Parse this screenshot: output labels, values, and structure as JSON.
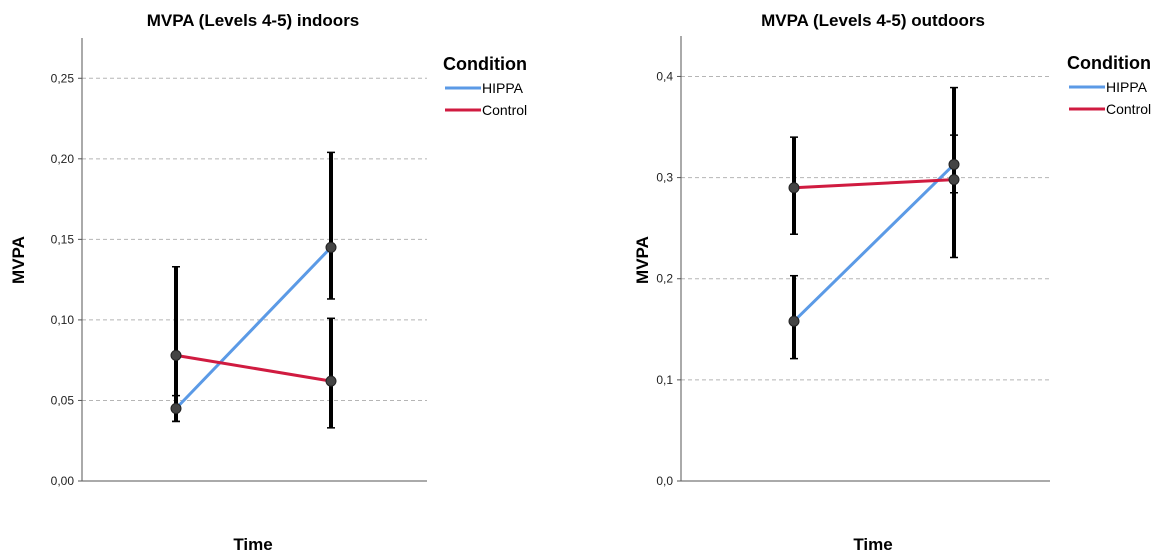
{
  "chart_data": [
    {
      "type": "line",
      "title": "MVPA (Levels 4-5) indoors",
      "xlabel": "Time",
      "ylabel": "MVPA",
      "ylim": [
        0,
        0.275
      ],
      "yticks": [
        "0,00",
        "0,05",
        "0,10",
        "0,15",
        "0,20",
        "0,25"
      ],
      "ytick_values": [
        0,
        0.05,
        0.1,
        0.15,
        0.2,
        0.25
      ],
      "grid": true,
      "legend": {
        "title": "Condition",
        "placement": "right"
      },
      "x": [
        1,
        2
      ],
      "series": [
        {
          "name": "HIPPA",
          "color": "#5b9ae6",
          "values": [
            0.045,
            0.145
          ],
          "ci_low": [
            0.037,
            0.113
          ],
          "ci_high": [
            0.053,
            0.204
          ]
        },
        {
          "name": "Control",
          "color": "#d01b40",
          "values": [
            0.078,
            0.062
          ],
          "ci_low": [
            0.037,
            0.033
          ],
          "ci_high": [
            0.133,
            0.101
          ]
        }
      ]
    },
    {
      "type": "line",
      "title": "MVPA (Levels 4-5) outdoors",
      "xlabel": "Time",
      "ylabel": "MVPA",
      "ylim": [
        0,
        0.44
      ],
      "yticks": [
        "0,0",
        "0,1",
        "0,2",
        "0,3",
        "0,4"
      ],
      "ytick_values": [
        0,
        0.1,
        0.2,
        0.3,
        0.4
      ],
      "grid": true,
      "legend": {
        "title": "Condition",
        "placement": "right"
      },
      "x": [
        1,
        2
      ],
      "series": [
        {
          "name": "HIPPA",
          "color": "#5b9ae6",
          "values": [
            0.158,
            0.313
          ],
          "ci_low": [
            0.121,
            0.285
          ],
          "ci_high": [
            0.203,
            0.342
          ]
        },
        {
          "name": "Control",
          "color": "#d01b40",
          "values": [
            0.29,
            0.298
          ],
          "ci_low": [
            0.244,
            0.221
          ],
          "ci_high": [
            0.34,
            0.389
          ]
        }
      ]
    }
  ]
}
